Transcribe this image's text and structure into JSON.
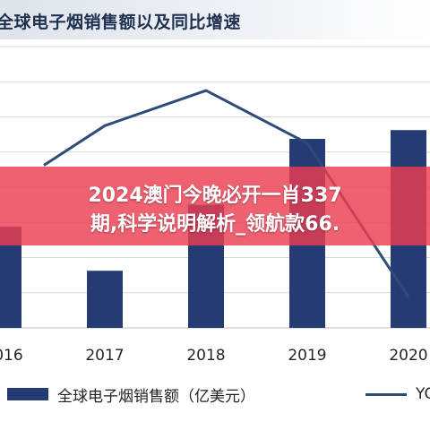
{
  "title": "全球电子烟销售额以及同比增速",
  "overlay": {
    "line1": "2024澳门今晚必开一肖337",
    "line2": "期,科学说明解析_领航款66."
  },
  "legend": {
    "bar_label": "全球电子烟销售额（亿美元）",
    "line_label": "YO"
  },
  "colors": {
    "bar": "#253b73",
    "line": "#2f4b78",
    "banner": "#eb3e52",
    "grid": "#d9d9d9"
  },
  "chart_data": {
    "type": "bar",
    "categories": [
      "2016",
      "2017",
      "2018",
      "2019",
      "2020"
    ],
    "series": [
      {
        "name": "全球电子烟销售额（亿美元）",
        "type": "bar",
        "values": [
          115,
          65,
          140,
          215,
          225
        ]
      },
      {
        "name": "YO",
        "type": "line",
        "values": [
          185,
          230,
          270,
          210,
          35
        ]
      }
    ],
    "ylim": [
      0,
      320
    ],
    "grid": true,
    "legend_position": "bottom"
  }
}
